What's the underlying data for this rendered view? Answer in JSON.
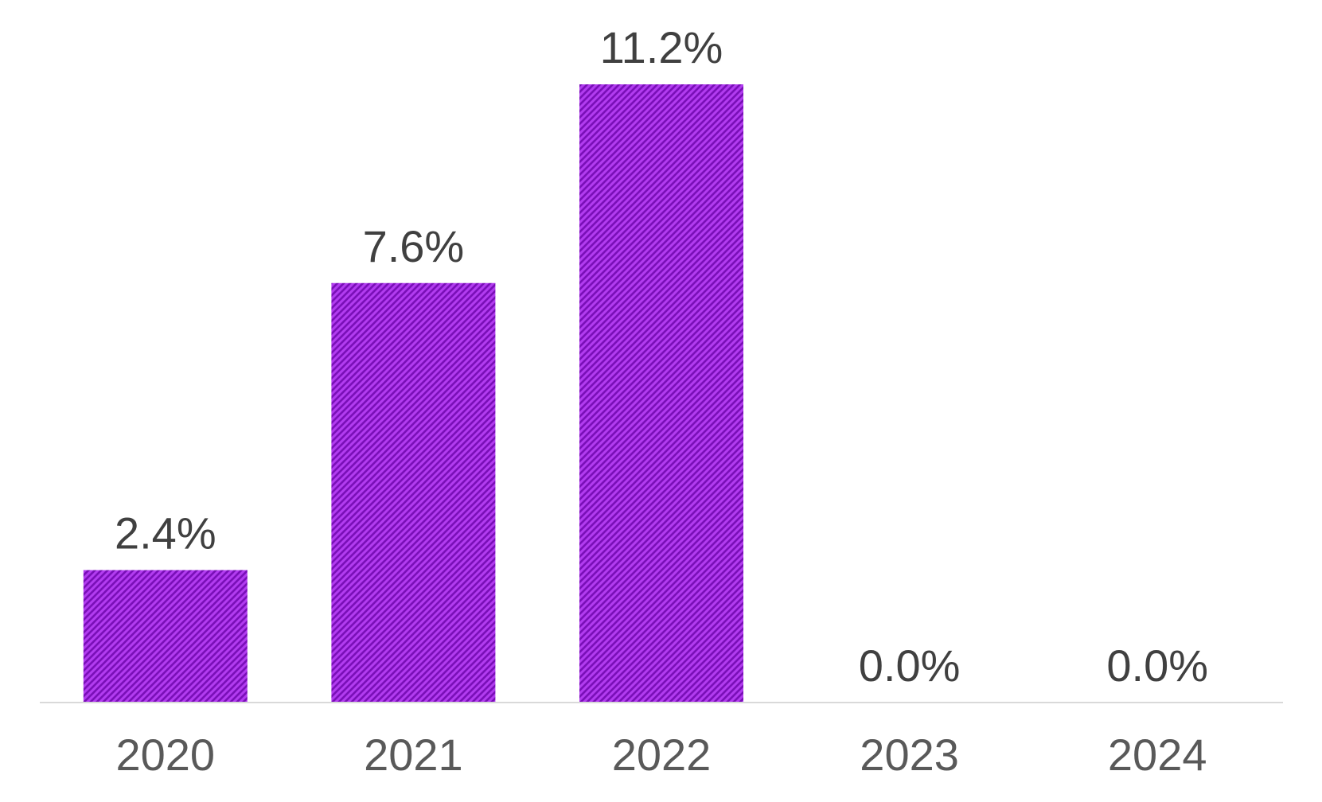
{
  "chart_data": {
    "type": "bar",
    "categories": [
      "2020",
      "2021",
      "2022",
      "2023",
      "2024"
    ],
    "values": [
      2.4,
      7.6,
      11.2,
      0.0,
      0.0
    ],
    "data_labels": [
      "2.4%",
      "7.6%",
      "11.2%",
      "0.0%",
      "0.0%"
    ],
    "title": "",
    "xlabel": "",
    "ylabel": "",
    "ylim": [
      0,
      11.2
    ],
    "grid": false,
    "legend": "none",
    "colors": {
      "bar_fill": "#7a0fb8",
      "bar_stripe": "#b23cf0",
      "axis_line": "#d9d9d9",
      "value_label": "#404040",
      "tick_label": "#595959"
    },
    "bar_pattern": "diagonal-stripes"
  }
}
